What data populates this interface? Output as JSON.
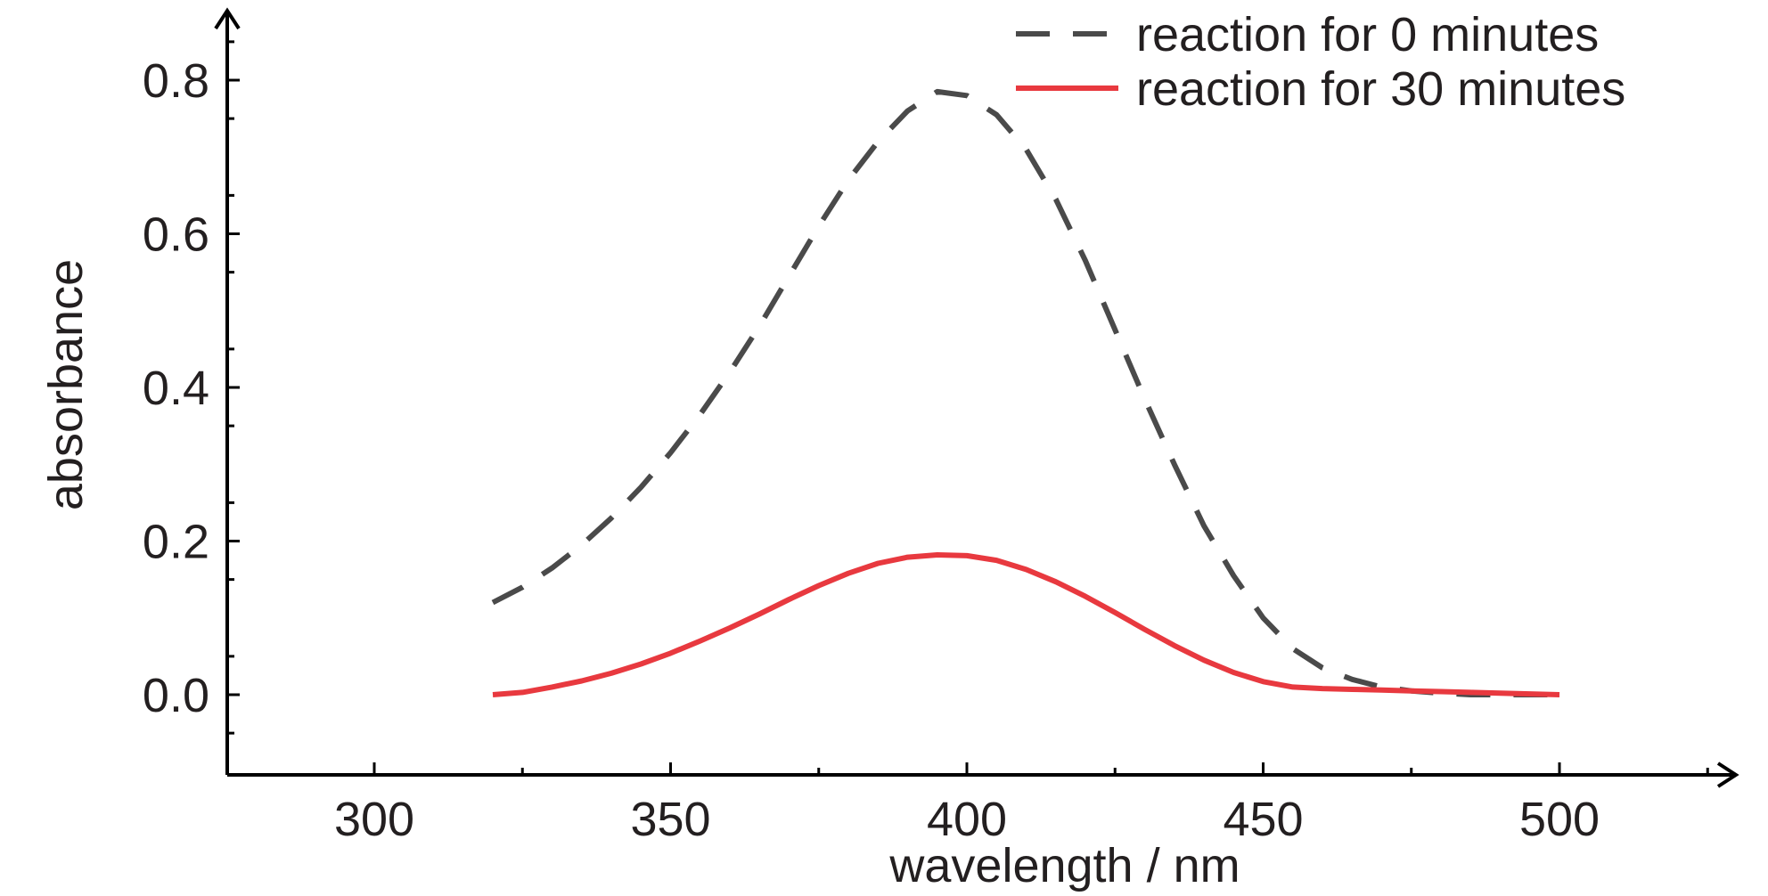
{
  "chart_data": {
    "type": "line",
    "xlabel": "wavelength / nm",
    "ylabel": "absorbance",
    "xlim": [
      275,
      525
    ],
    "ylim": [
      -0.1,
      0.9
    ],
    "x_ticks": [
      300,
      350,
      400,
      450,
      500
    ],
    "x_tick_labels": [
      "300",
      "350",
      "400",
      "450",
      "500"
    ],
    "y_ticks": [
      0.0,
      0.2,
      0.4,
      0.6,
      0.8
    ],
    "y_tick_labels": [
      "0.0",
      "0.2",
      "0.4",
      "0.6",
      "0.8"
    ],
    "grid": false,
    "legend_position": "top-right",
    "series": [
      {
        "name": "reaction for 0 minutes",
        "color": "#4a4a4a",
        "style": "dashed",
        "x": [
          320,
          325,
          330,
          335,
          340,
          345,
          350,
          355,
          360,
          365,
          370,
          375,
          380,
          385,
          390,
          395,
          400,
          405,
          410,
          415,
          420,
          425,
          430,
          435,
          440,
          445,
          450,
          455,
          460,
          465,
          470,
          475,
          480,
          485,
          490,
          495,
          500
        ],
        "values": [
          0.12,
          0.14,
          0.165,
          0.195,
          0.23,
          0.27,
          0.315,
          0.365,
          0.42,
          0.48,
          0.545,
          0.61,
          0.67,
          0.72,
          0.76,
          0.785,
          0.78,
          0.755,
          0.71,
          0.645,
          0.565,
          0.475,
          0.385,
          0.3,
          0.22,
          0.155,
          0.1,
          0.06,
          0.035,
          0.02,
          0.01,
          0.005,
          0.002,
          0.0,
          0.0,
          0.0,
          0.0
        ]
      },
      {
        "name": "reaction for 30 minutes",
        "color": "#e8393f",
        "style": "solid",
        "x": [
          320,
          325,
          330,
          335,
          340,
          345,
          350,
          355,
          360,
          365,
          370,
          375,
          380,
          385,
          390,
          395,
          400,
          405,
          410,
          415,
          420,
          425,
          430,
          435,
          440,
          445,
          450,
          455,
          460,
          465,
          470,
          475,
          480,
          485,
          490,
          495,
          500
        ],
        "values": [
          0.0,
          0.003,
          0.01,
          0.018,
          0.028,
          0.04,
          0.054,
          0.07,
          0.087,
          0.105,
          0.124,
          0.142,
          0.158,
          0.171,
          0.179,
          0.182,
          0.181,
          0.175,
          0.163,
          0.147,
          0.128,
          0.107,
          0.085,
          0.064,
          0.045,
          0.029,
          0.017,
          0.01,
          0.008,
          0.007,
          0.006,
          0.005,
          0.004,
          0.003,
          0.002,
          0.001,
          0.0
        ]
      }
    ]
  }
}
